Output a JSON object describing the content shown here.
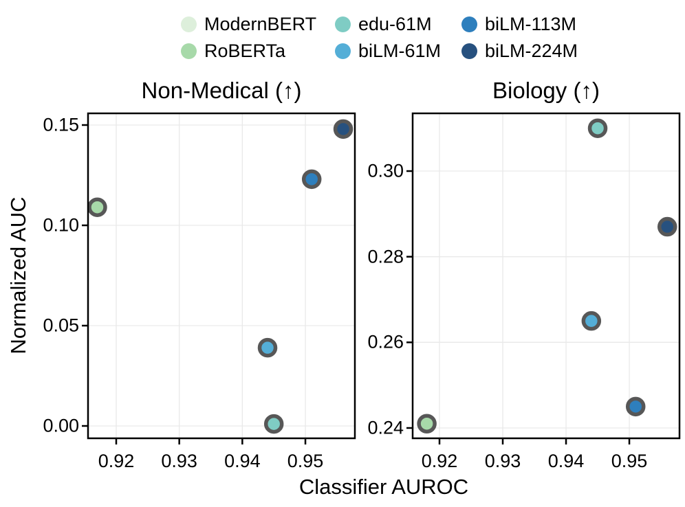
{
  "figure": {
    "xlabel": "Classifier AUROC",
    "ylabel": "Normalized AUC"
  },
  "legend": {
    "items": [
      {
        "label": "ModernBERT",
        "color": "#ddefdb"
      },
      {
        "label": "RoBERTa",
        "color": "#a7d9a9"
      },
      {
        "label": "edu-61M",
        "color": "#7fccc4"
      },
      {
        "label": "biLM-61M",
        "color": "#54aed7"
      },
      {
        "label": "biLM-113M",
        "color": "#2e7fbd"
      },
      {
        "label": "biLM-224M",
        "color": "#27517f"
      }
    ]
  },
  "style": {
    "marker_edge": "#575757",
    "grid_color": "#e9e9e9",
    "axis_color": "#000000",
    "background": "#ffffff"
  },
  "chart_data": [
    {
      "type": "scatter",
      "title": "Non-Medical (↑)",
      "xlabel": "Classifier AUROC",
      "ylabel": "Normalized AUC",
      "xlim": [
        0.91553,
        0.95785
      ],
      "ylim": [
        -0.00616,
        0.15582
      ],
      "xticks": [
        0.92,
        0.93,
        0.94,
        0.95
      ],
      "xticklabels": [
        "0.92",
        "0.93",
        "0.94",
        "0.95"
      ],
      "yticks": [
        0.0,
        0.05,
        0.1,
        0.15
      ],
      "yticklabels": [
        "0.00",
        "0.05",
        "0.10",
        "0.15"
      ],
      "grid": true,
      "points": [
        {
          "series": "RoBERTa",
          "x": 0.917,
          "y": 0.109
        },
        {
          "series": "edu-61M",
          "x": 0.945,
          "y": 0.001
        },
        {
          "series": "biLM-61M",
          "x": 0.944,
          "y": 0.039
        },
        {
          "series": "biLM-113M",
          "x": 0.951,
          "y": 0.123
        },
        {
          "series": "biLM-224M",
          "x": 0.956,
          "y": 0.148
        }
      ]
    },
    {
      "type": "scatter",
      "title": "Biology (↑)",
      "xlabel": "Classifier AUROC",
      "ylabel": "",
      "xlim": [
        0.91576,
        0.95793
      ],
      "ylim": [
        0.23759,
        0.31348
      ],
      "xticks": [
        0.92,
        0.93,
        0.94,
        0.95
      ],
      "xticklabels": [
        "0.92",
        "0.93",
        "0.94",
        "0.95"
      ],
      "yticks": [
        0.24,
        0.26,
        0.28,
        0.3
      ],
      "yticklabels": [
        "0.24",
        "0.26",
        "0.28",
        "0.30"
      ],
      "grid": true,
      "points": [
        {
          "series": "RoBERTa",
          "x": 0.918,
          "y": 0.241
        },
        {
          "series": "edu-61M",
          "x": 0.945,
          "y": 0.31
        },
        {
          "series": "biLM-61M",
          "x": 0.944,
          "y": 0.265
        },
        {
          "series": "biLM-113M",
          "x": 0.951,
          "y": 0.245
        },
        {
          "series": "biLM-224M",
          "x": 0.956,
          "y": 0.287
        }
      ]
    }
  ]
}
